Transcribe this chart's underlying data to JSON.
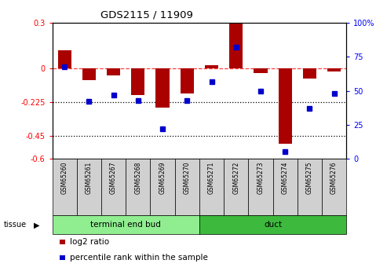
{
  "title": "GDS2115 / 11909",
  "samples": [
    "GSM65260",
    "GSM65261",
    "GSM65267",
    "GSM65268",
    "GSM65269",
    "GSM65270",
    "GSM65271",
    "GSM65272",
    "GSM65273",
    "GSM65274",
    "GSM65275",
    "GSM65276"
  ],
  "log2_ratio": [
    0.12,
    -0.08,
    -0.05,
    -0.18,
    -0.26,
    -0.17,
    0.02,
    0.3,
    -0.03,
    -0.5,
    -0.07,
    -0.02
  ],
  "percentile_rank": [
    68,
    42,
    47,
    43,
    22,
    43,
    57,
    82,
    50,
    5,
    37,
    48
  ],
  "tissue_groups": [
    {
      "label": "terminal end bud",
      "start": 0,
      "end": 6,
      "color": "#90ee90"
    },
    {
      "label": "duct",
      "start": 6,
      "end": 12,
      "color": "#3dba3d"
    }
  ],
  "ylim_left": [
    -0.6,
    0.3
  ],
  "ylim_right": [
    0,
    100
  ],
  "yticks_left": [
    0.3,
    0,
    -0.225,
    -0.45,
    -0.6
  ],
  "ytick_labels_left": [
    "0.3",
    "0",
    "-0.225",
    "-0.45",
    "-0.6"
  ],
  "yticks_right": [
    100,
    75,
    50,
    25,
    0
  ],
  "ytick_labels_right": [
    "100%",
    "75",
    "50",
    "25",
    "0"
  ],
  "hline_y": 0,
  "dotted_lines": [
    -0.225,
    -0.45
  ],
  "bar_color": "#aa0000",
  "dot_color": "#0000cc",
  "legend_items": [
    {
      "label": "log2 ratio",
      "color": "#aa0000"
    },
    {
      "label": "percentile rank within the sample",
      "color": "#0000cc"
    }
  ],
  "bar_width": 0.55,
  "dot_size": 5
}
